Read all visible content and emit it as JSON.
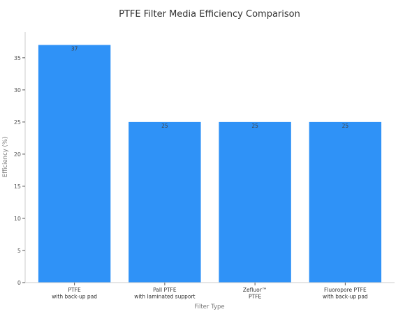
{
  "chart_data": {
    "type": "bar",
    "title": "PTFE Filter Media Efficiency Comparison",
    "xlabel": "Filter Type",
    "ylabel": "Efficiency (%)",
    "categories": [
      [
        "PTFE",
        "with back-up pad"
      ],
      [
        "Pall PTFE",
        "with laminated support"
      ],
      [
        "Zefluor™",
        "PTFE"
      ],
      [
        "Fluoropore PTFE",
        "with back-up pad"
      ]
    ],
    "values": [
      37,
      25,
      25,
      25
    ],
    "ylim": [
      0,
      39
    ],
    "yticks": [
      0,
      5,
      10,
      15,
      20,
      25,
      30,
      35
    ],
    "bar_color": "#2f92f7",
    "grid": false,
    "data_labels": true
  }
}
